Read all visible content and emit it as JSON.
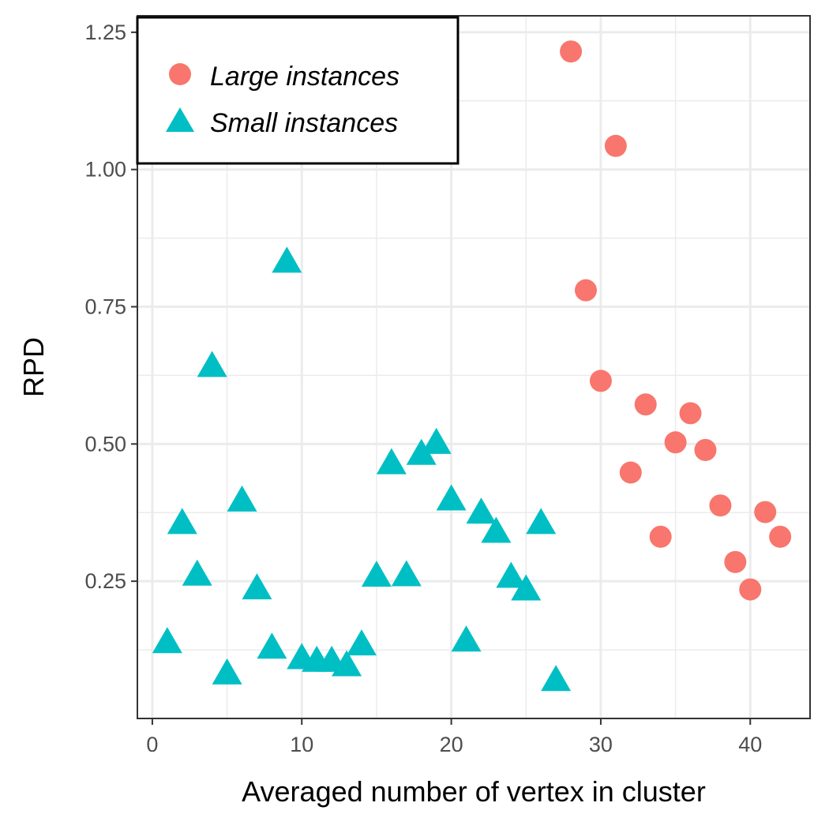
{
  "chart_data": {
    "type": "scatter",
    "title": "",
    "xlabel": "Averaged number of vertex in cluster",
    "ylabel": "RPD",
    "xlim": [
      -1,
      44
    ],
    "ylim": [
      0.0,
      1.28
    ],
    "x_ticks": [
      0,
      10,
      20,
      30,
      40
    ],
    "x_tick_labels": [
      "0",
      "10",
      "20",
      "30",
      "40"
    ],
    "y_ticks": [
      0.25,
      0.5,
      0.75,
      1.0,
      1.25
    ],
    "y_tick_labels": [
      "0.25",
      "0.50",
      "0.75",
      "1.00",
      "1.25"
    ],
    "grid": true,
    "legend_position": "top-left",
    "series": [
      {
        "name": "Large instances",
        "marker": "circle",
        "color": "#F8766D",
        "x": [
          28,
          29,
          30,
          31,
          32,
          33,
          34,
          35,
          36,
          37,
          38,
          39,
          40,
          41,
          42
        ],
        "y": [
          1.215,
          0.78,
          0.615,
          1.043,
          0.448,
          0.572,
          0.331,
          0.503,
          0.556,
          0.489,
          0.388,
          0.285,
          0.235,
          0.376,
          0.331
        ]
      },
      {
        "name": "Small instances",
        "marker": "triangle",
        "color": "#00BFC4",
        "x": [
          1,
          2,
          3,
          4,
          5,
          6,
          7,
          8,
          9,
          10,
          11,
          12,
          13,
          14,
          15,
          16,
          17,
          18,
          19,
          20,
          21,
          22,
          23,
          24,
          25,
          26,
          27
        ],
        "y": [
          0.137,
          0.354,
          0.26,
          0.64,
          0.08,
          0.395,
          0.235,
          0.127,
          0.83,
          0.108,
          0.103,
          0.103,
          0.095,
          0.133,
          0.258,
          0.463,
          0.259,
          0.48,
          0.5,
          0.397,
          0.14,
          0.373,
          0.338,
          0.256,
          0.233,
          0.354,
          0.068
        ]
      }
    ]
  }
}
